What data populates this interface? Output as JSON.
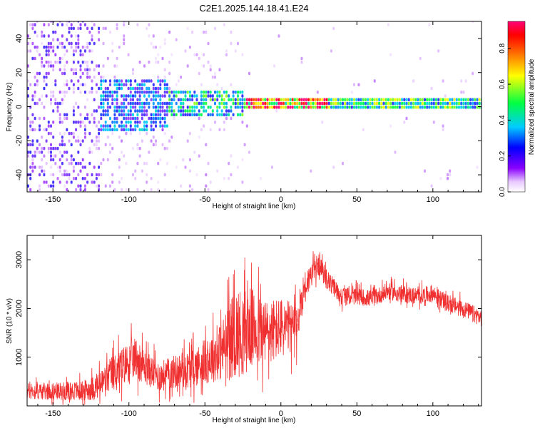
{
  "title": "C2E1.2025.144.18.41.E24",
  "colorbar": {
    "label": "Normalized spectral amplitude",
    "ticks": [
      0.0,
      0.2,
      0.4,
      0.6,
      0.8
    ],
    "tick_labels": [
      "0.0",
      "0.2",
      "0.4",
      "0.6",
      "0.8"
    ],
    "range": [
      0,
      0.95
    ]
  },
  "chart_data": [
    {
      "type": "heatmap",
      "xlabel": "Height of straight line (km)",
      "ylabel": "Frequency (Hz)",
      "xlim": [
        -167,
        132
      ],
      "ylim": [
        -50,
        50
      ],
      "xticks": [
        -150,
        -100,
        -50,
        0,
        50,
        100
      ],
      "xtick_labels": [
        "-150",
        "-100",
        "-50",
        "0",
        "50",
        "100"
      ],
      "yticks": [
        -40,
        -20,
        0,
        20,
        40
      ],
      "ytick_labels": [
        "-40",
        "-20",
        "0",
        "20",
        "40"
      ],
      "colormap": "rainbow (white-purple-blue-cyan-green-yellow-red-pink)",
      "description_points": [
        {
          "x_range": [
            -167,
            -120
          ],
          "f_range": [
            -50,
            50
          ],
          "amplitude": 0.12
        },
        {
          "x_range": [
            -120,
            -75
          ],
          "f_range": [
            -15,
            15
          ],
          "amplitude": 0.3
        },
        {
          "x_range": [
            -75,
            -25
          ],
          "f_range": [
            -8,
            8
          ],
          "amplitude": 0.45
        },
        {
          "x_range": [
            -25,
            30
          ],
          "f_range": [
            -2,
            3
          ],
          "amplitude": 0.85
        },
        {
          "x_range": [
            30,
            132
          ],
          "f_range": [
            -2,
            4
          ],
          "amplitude": 0.5
        }
      ]
    },
    {
      "type": "line",
      "xlabel": "Height of straight line (km)",
      "ylabel": "SNR (10 * v/v)",
      "xlim": [
        -167,
        132
      ],
      "ylim": [
        0,
        3500
      ],
      "xticks": [
        -150,
        -100,
        -50,
        0,
        50,
        100
      ],
      "xtick_labels": [
        "-150",
        "-100",
        "-50",
        "0",
        "50",
        "100"
      ],
      "yticks": [
        1000,
        2000,
        3000
      ],
      "ytick_labels": [
        "1000",
        "2000",
        "3000"
      ],
      "color": "#f03030",
      "series": [
        {
          "x": [
            -167,
            -150,
            -130,
            -120,
            -110,
            -100,
            -95,
            -90,
            -80,
            -70,
            -60,
            -50,
            -40,
            -30,
            -25,
            -20,
            -10,
            0,
            10,
            15,
            20,
            25,
            30,
            40,
            50,
            60,
            70,
            80,
            90,
            100,
            110,
            120,
            132
          ],
          "values": [
            300,
            300,
            310,
            400,
            700,
            900,
            1000,
            800,
            600,
            700,
            750,
            900,
            1100,
            1500,
            1500,
            1600,
            1500,
            1600,
            1600,
            2400,
            2700,
            2900,
            2600,
            2250,
            2250,
            2200,
            2350,
            2300,
            2250,
            2300,
            2100,
            2000,
            1800
          ],
          "noise": [
            250,
            250,
            300,
            400,
            550,
            600,
            600,
            500,
            450,
            500,
            550,
            650,
            850,
            1300,
            1300,
            1200,
            1000,
            900,
            700,
            500,
            350,
            300,
            300,
            250,
            250,
            250,
            250,
            250,
            250,
            250,
            250,
            250,
            250
          ]
        }
      ]
    }
  ]
}
